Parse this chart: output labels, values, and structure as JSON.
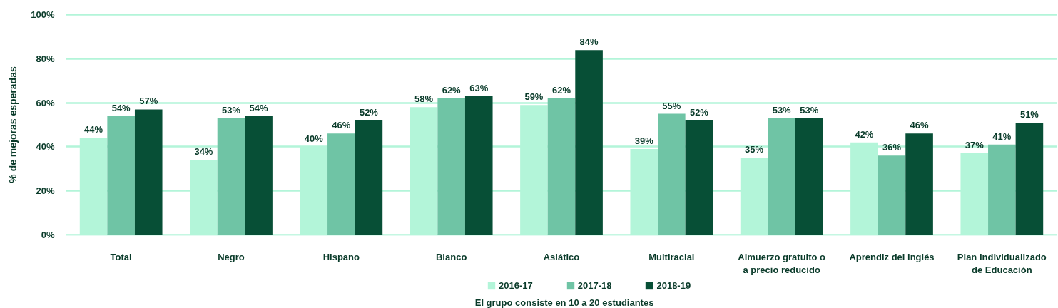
{
  "chart_data": {
    "type": "bar",
    "ylabel": "% de mejoras esperadas",
    "categories": [
      "Total",
      "Negro",
      "Hispano",
      "Blanco",
      "Asiático",
      "Multiracial",
      "Almuerzo gratuito o a precio reducido",
      "Aprendiz del inglés",
      "Plan Individualizado de Educación"
    ],
    "series": [
      {
        "name": "2016-17",
        "color": "#b3f5d9",
        "values": [
          44,
          34,
          40,
          58,
          59,
          39,
          35,
          42,
          37
        ],
        "value_labels": [
          "44%",
          "34%",
          "40%",
          "58%",
          "59%",
          "39%",
          "35%",
          "42%",
          "37%"
        ]
      },
      {
        "name": "2017-18",
        "color": "#6fc4a5",
        "values": [
          54,
          53,
          46,
          62,
          62,
          55,
          53,
          36,
          41
        ],
        "value_labels": [
          "54%",
          "53%",
          "46%",
          "62%",
          "62%",
          "55%",
          "53%",
          "36%",
          "41%"
        ]
      },
      {
        "name": "2018-19",
        "color": "#074f36",
        "values": [
          57,
          54,
          52,
          63,
          84,
          52,
          53,
          46,
          51
        ],
        "value_labels": [
          "57%",
          "54%",
          "52%",
          "63%",
          "84%",
          "52%",
          "53%",
          "46%",
          "51%"
        ]
      }
    ],
    "ylim": [
      0,
      100
    ],
    "yticks": [
      {
        "value": 0,
        "label": "0%"
      },
      {
        "value": 20,
        "label": "20%"
      },
      {
        "value": 40,
        "label": "40%"
      },
      {
        "value": 60,
        "label": "60%"
      },
      {
        "value": 80,
        "label": "80%"
      },
      {
        "value": 100,
        "label": "100%"
      }
    ],
    "grid": "y",
    "legend": "bottom",
    "annotations": [
      "El grupo consiste en 10 a 20 estudiantes"
    ]
  }
}
